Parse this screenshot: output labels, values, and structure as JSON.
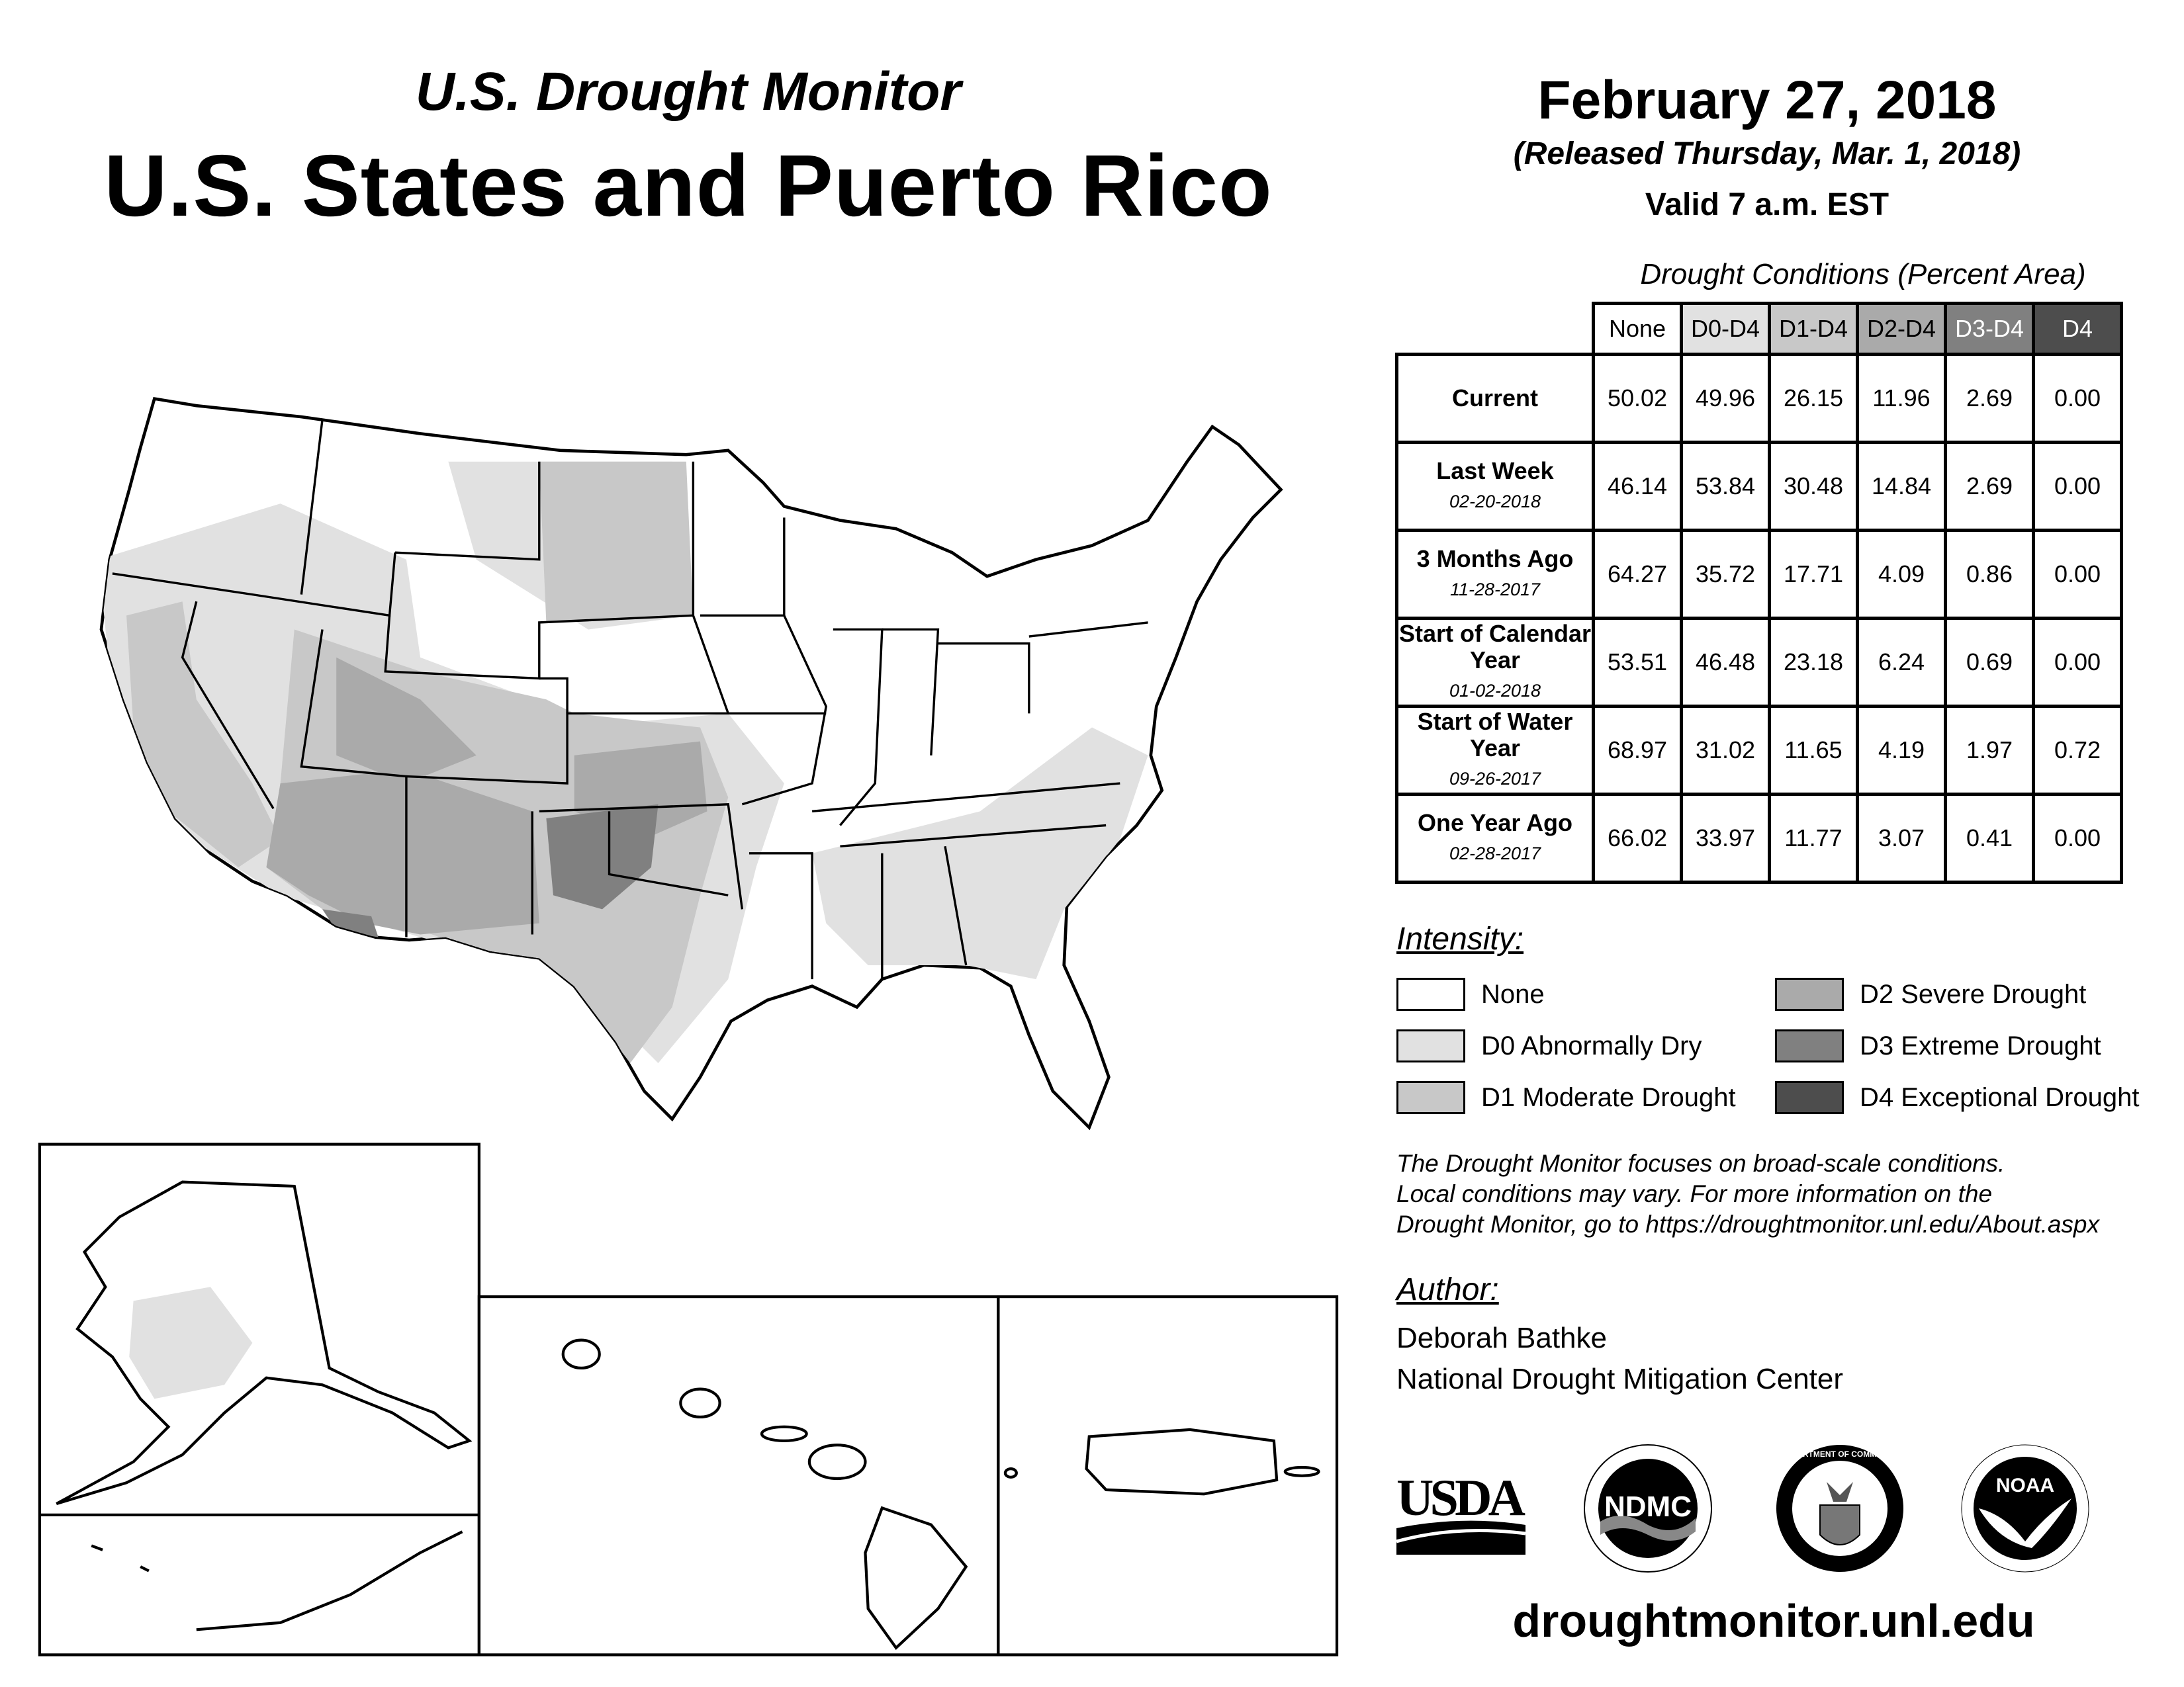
{
  "header": {
    "subtitle": "U.S. Drought Monitor",
    "title": "U.S. States and Puerto Rico",
    "date": "February 27, 2018",
    "released": "(Released Thursday, Mar. 1, 2018)",
    "valid": "Valid 7 a.m. EST"
  },
  "stats": {
    "caption": "Drought Conditions (Percent Area)",
    "columns": [
      "None",
      "D0-D4",
      "D1-D4",
      "D2-D4",
      "D3-D4",
      "D4"
    ],
    "column_colors": [
      "#ffffff",
      "#e1e1e1",
      "#c8c8c8",
      "#aaaaaa",
      "#808080",
      "#4d4d4d"
    ],
    "rows": [
      {
        "label": "Current",
        "date": "",
        "values": [
          "50.02",
          "49.96",
          "26.15",
          "11.96",
          "2.69",
          "0.00"
        ]
      },
      {
        "label": "Last Week",
        "date": "02-20-2018",
        "values": [
          "46.14",
          "53.84",
          "30.48",
          "14.84",
          "2.69",
          "0.00"
        ]
      },
      {
        "label": "3 Months Ago",
        "date": "11-28-2017",
        "values": [
          "64.27",
          "35.72",
          "17.71",
          "4.09",
          "0.86",
          "0.00"
        ]
      },
      {
        "label": "Start of Calendar Year",
        "date": "01-02-2018",
        "values": [
          "53.51",
          "46.48",
          "23.18",
          "6.24",
          "0.69",
          "0.00"
        ]
      },
      {
        "label": "Start of Water Year",
        "date": "09-26-2017",
        "values": [
          "68.97",
          "31.02",
          "11.65",
          "4.19",
          "1.97",
          "0.72"
        ]
      },
      {
        "label": "One Year Ago",
        "date": "02-28-2017",
        "values": [
          "66.02",
          "33.97",
          "11.77",
          "3.07",
          "0.41",
          "0.00"
        ]
      }
    ]
  },
  "legend": {
    "title": "Intensity:",
    "items": [
      {
        "label": "None",
        "color": "#ffffff"
      },
      {
        "label": "D0 Abnormally Dry",
        "color": "#e1e1e1"
      },
      {
        "label": "D1 Moderate Drought",
        "color": "#c8c8c8"
      },
      {
        "label": "D2 Severe Drought",
        "color": "#aaaaaa"
      },
      {
        "label": "D3 Extreme Drought",
        "color": "#808080"
      },
      {
        "label": "D4 Exceptional Drought",
        "color": "#4d4d4d"
      }
    ]
  },
  "note": [
    "The Drought Monitor focuses on broad-scale conditions.",
    "Local conditions may vary. For more information on the",
    "Drought Monitor, go to https://droughtmonitor.unl.edu/About.aspx"
  ],
  "author": {
    "title": "Author:",
    "name": "Deborah Bathke",
    "org": "National Drought Mitigation Center"
  },
  "logos": {
    "usda": "USDA",
    "ndmc": "NDMC",
    "doc": "DEPARTMENT OF COMMERCE",
    "noaa": "NOAA"
  },
  "footer": {
    "site": "droughtmonitor.unl.edu"
  }
}
